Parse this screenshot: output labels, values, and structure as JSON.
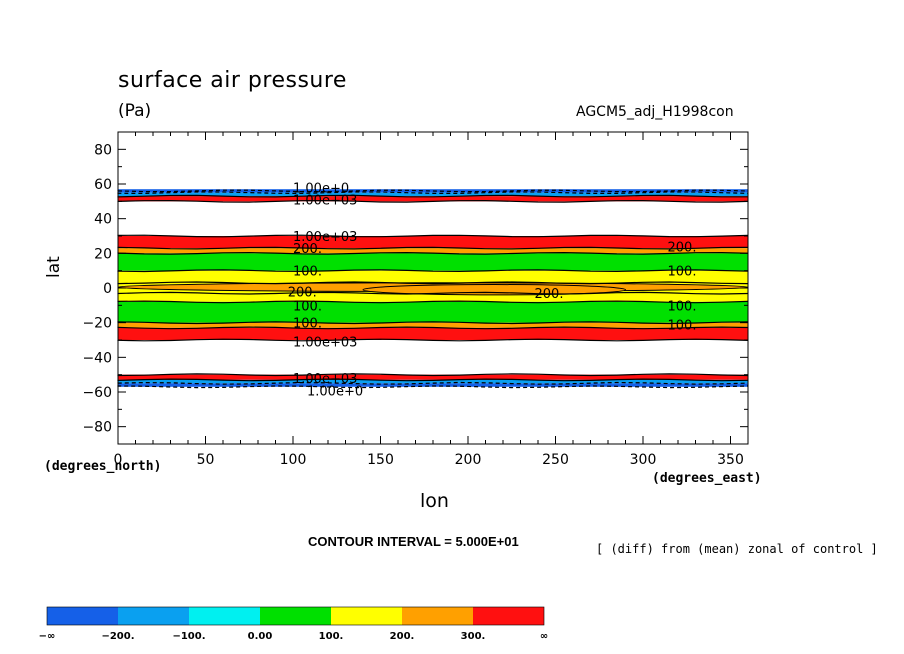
{
  "header": {
    "title": "surface air pressure",
    "units": "(Pa)",
    "run_label": "AGCM5_adj_H1998con"
  },
  "axes": {
    "ylabel": "lat",
    "xlabel": "lon",
    "y_units": "(degrees_north)",
    "x_units": "(degrees_east)"
  },
  "footer": {
    "contour_interval": "CONTOUR INTERVAL = 5.000E+01",
    "note": "[ (diff) from (mean) zonal of control ]"
  },
  "chart_data": {
    "type": "filled-contour",
    "title": "surface air pressure",
    "units": "(Pa)",
    "xlabel": "lon",
    "ylabel": "lat",
    "xlim": [
      0,
      360
    ],
    "ylim": [
      -90,
      90
    ],
    "x_ticks": [
      0,
      50,
      100,
      150,
      200,
      250,
      300,
      350
    ],
    "y_ticks": [
      80,
      60,
      40,
      20,
      0,
      -20,
      -40,
      -60,
      -80
    ],
    "y_tick_labels": [
      "80",
      "60",
      "40",
      "20",
      "0",
      "−20",
      "−40",
      "−60",
      "−80"
    ],
    "contour_interval": 50,
    "colorbar": {
      "labels": [
        "−∞",
        "−200.",
        "−100.",
        "0.00",
        "100.",
        "200.",
        "300.",
        "∞"
      ],
      "colors": [
        "#1560e8",
        "#0aa0f0",
        "#00f0f0",
        "#00e000",
        "#ffff00",
        "#ffa000",
        "#ff1010"
      ]
    },
    "bands": [
      {
        "lat_from": 57,
        "lat_to": 55,
        "color": "#1560e8"
      },
      {
        "lat_from": 55,
        "lat_to": 53,
        "color": "#0aa0f0"
      },
      {
        "lat_from": 53,
        "lat_to": 50,
        "color": "#ff1010"
      },
      {
        "lat_from": 30,
        "lat_to": 23,
        "color": "#ff1010"
      },
      {
        "lat_from": 23,
        "lat_to": 20,
        "color": "#ffa000"
      },
      {
        "lat_from": 20,
        "lat_to": 10,
        "color": "#00e000"
      },
      {
        "lat_from": 10,
        "lat_to": -8,
        "color": "#ffff00"
      },
      {
        "lat_from": -8,
        "lat_to": -20,
        "color": "#00e000"
      },
      {
        "lat_from": -20,
        "lat_to": -23,
        "color": "#ffa000"
      },
      {
        "lat_from": -23,
        "lat_to": -30,
        "color": "#ff1010"
      },
      {
        "lat_from": -50,
        "lat_to": -53,
        "color": "#ff1010"
      },
      {
        "lat_from": -53,
        "lat_to": -55,
        "color": "#0aa0f0"
      },
      {
        "lat_from": -55,
        "lat_to": -57,
        "color": "#1560e8"
      }
    ],
    "contour_lines_lat": [
      56,
      55,
      53,
      50,
      30,
      23,
      20,
      10,
      3,
      -3,
      -8,
      -20,
      -23,
      -30,
      -50,
      -53,
      -55,
      -57
    ],
    "orange_patches": [
      {
        "lon_from": 0,
        "lon_to": 360,
        "lat_from": 3,
        "lat_to": -2
      },
      {
        "lon_from": 140,
        "lon_to": 290,
        "lat_from": 2,
        "lat_to": -4
      }
    ],
    "annotations": [
      {
        "text": "1.00e+0",
        "lon": 100,
        "lat": 58
      },
      {
        "text": "1.00e+03",
        "lon": 100,
        "lat": 51
      },
      {
        "text": "1.00e+03",
        "lon": 100,
        "lat": 30
      },
      {
        "text": "200.",
        "lon": 100,
        "lat": 23
      },
      {
        "text": "100.",
        "lon": 100,
        "lat": 10
      },
      {
        "text": "200.",
        "lon": 97,
        "lat": -2
      },
      {
        "text": "200.",
        "lon": 238,
        "lat": -3
      },
      {
        "text": "100.",
        "lon": 100,
        "lat": -10
      },
      {
        "text": "100.",
        "lon": 100,
        "lat": -20
      },
      {
        "text": "1.00e+03",
        "lon": 100,
        "lat": -31
      },
      {
        "text": "1.00e+03",
        "lon": 100,
        "lat": -52
      },
      {
        "text": "1.00e+0",
        "lon": 108,
        "lat": -59
      },
      {
        "text": "100.",
        "lon": 314,
        "lat": 10
      },
      {
        "text": "200.",
        "lon": 314,
        "lat": 24
      },
      {
        "text": "100.",
        "lon": 314,
        "lat": -10
      },
      {
        "text": "100.",
        "lon": 314,
        "lat": -21
      }
    ]
  }
}
